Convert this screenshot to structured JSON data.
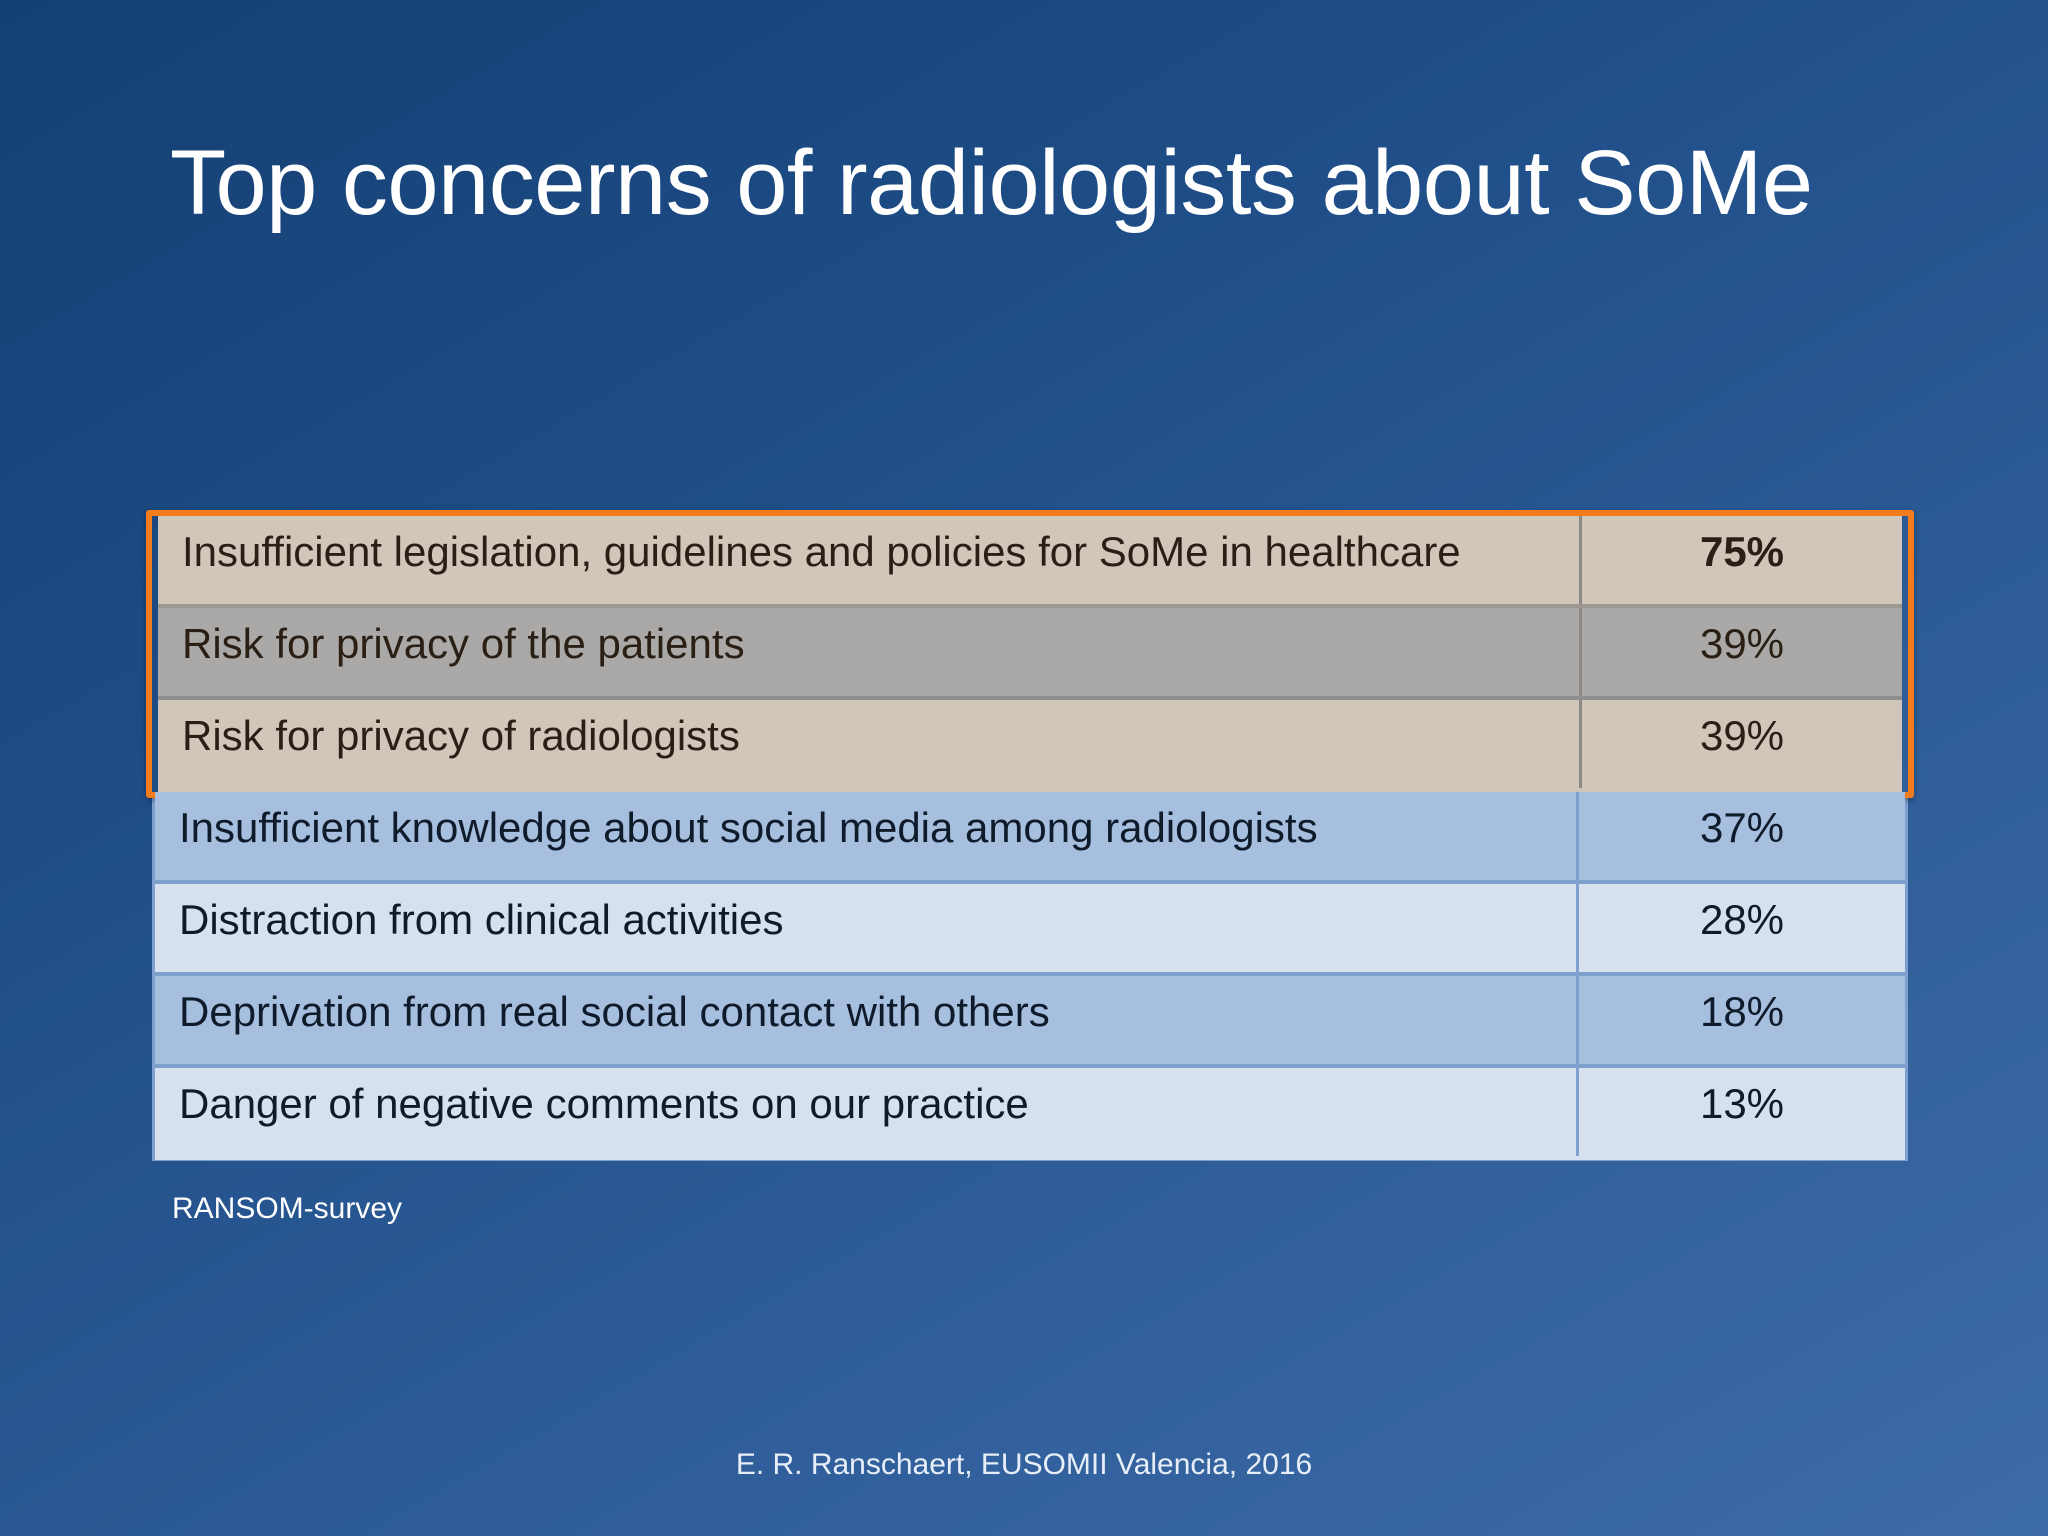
{
  "slide": {
    "title": "Top concerns of radiologists about SoMe",
    "source": "RANSOM-survey",
    "footer": "E. R. Ranschaert, EUSOMII Valencia, 2016"
  },
  "table": {
    "highlighted_rows": [
      {
        "label": "Insufficient legislation, guidelines and policies for SoMe in healthcare",
        "value": "75%"
      },
      {
        "label": "Risk for privacy of the patients",
        "value": "39%"
      },
      {
        "label": "Risk for privacy of radiologists",
        "value": "39%"
      }
    ],
    "rows": [
      {
        "label": "Insufficient knowledge about social media among radiologists",
        "value": "37%"
      },
      {
        "label": "Distraction from clinical activities",
        "value": "28%"
      },
      {
        "label": "Deprivation from real social contact with others",
        "value": "18%"
      },
      {
        "label": "Danger of negative comments on our practice",
        "value": "13%"
      }
    ]
  },
  "colors": {
    "highlight_border": "#f27c1c",
    "background_top": "#143f73",
    "background_bottom": "#3d6ca8"
  }
}
